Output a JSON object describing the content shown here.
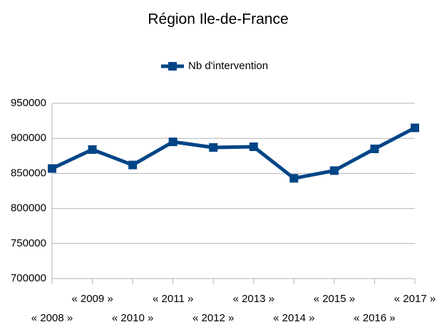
{
  "chart_data": {
    "type": "line",
    "title": "Région Ile-de-France",
    "categories": [
      "« 2008 »",
      "« 2009 »",
      "« 2010 »",
      "« 2011 »",
      "« 2012 »",
      "« 2013 »",
      "« 2014 »",
      "« 2015 »",
      "« 2016 »",
      "« 2017 »"
    ],
    "series": [
      {
        "name": "Nb d'intervention",
        "color": "#004586",
        "values": [
          857000,
          884000,
          862000,
          895000,
          887000,
          888000,
          843000,
          854000,
          885000,
          915000
        ]
      }
    ],
    "ylim": [
      700000,
      950000
    ],
    "yticks": [
      700000,
      750000,
      800000,
      850000,
      900000,
      950000
    ],
    "grid": true,
    "legend": "top"
  }
}
